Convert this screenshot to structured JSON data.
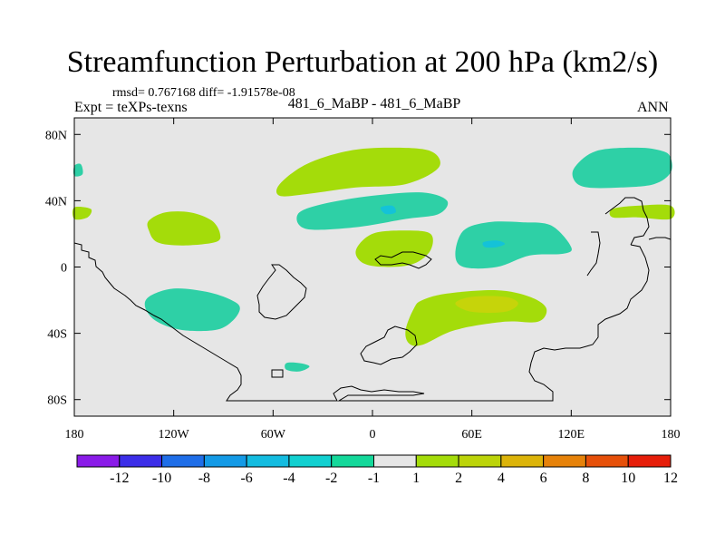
{
  "chart_data": {
    "type": "contour-map",
    "title": "Streamfunction Perturbation at 200 hPa (km2/s)",
    "stats_line": "rmsd= 0.767168 diff= -1.91578e-08",
    "experiment_label": "Expt = teXPs-texns",
    "case_label": "481_6_MaBP - 481_6_MaBP",
    "season": "ANN",
    "x_ticks": [
      "180",
      "120W",
      "60W",
      "0",
      "60E",
      "120E",
      "180"
    ],
    "x_tick_values": [
      -180,
      -120,
      -60,
      0,
      60,
      120,
      180
    ],
    "y_ticks": [
      "80N",
      "40N",
      "0",
      "40S",
      "80S"
    ],
    "y_tick_values": [
      80,
      40,
      0,
      -40,
      -80
    ],
    "xlim": [
      -180,
      180
    ],
    "ylim": [
      -90,
      90
    ],
    "colorbar": {
      "labels": [
        "-12",
        "-10",
        "-8",
        "-6",
        "-4",
        "-2",
        "-1",
        "1",
        "2",
        "4",
        "6",
        "8",
        "10",
        "12"
      ],
      "colors": [
        "#8a1be8",
        "#3c2ee8",
        "#1f6ee8",
        "#149ae6",
        "#14bce0",
        "#12d0d0",
        "#14d89a",
        "#e6e6e6",
        "#a4dc0a",
        "#bcd40a",
        "#dcb40a",
        "#e6820a",
        "#e6500a",
        "#e61e0a"
      ]
    },
    "regions": [
      {
        "name": "north-pacific-west-edge",
        "level": "-2..-1",
        "color": "#2ed0a6",
        "lonlat": [
          [
            -180,
            61
          ],
          [
            -176,
            62
          ],
          [
            -175,
            56
          ],
          [
            -180,
            55
          ]
        ]
      },
      {
        "name": "west-pacific-tropics-edge",
        "level": "1..2",
        "color": "#a4dc0a",
        "lonlat": [
          [
            -180,
            36
          ],
          [
            -170,
            35
          ],
          [
            -172,
            30
          ],
          [
            -180,
            29
          ]
        ]
      },
      {
        "name": "east-pacific-north",
        "level": "1..2",
        "color": "#a4dc0a",
        "lonlat": [
          [
            -135,
            28
          ],
          [
            -125,
            33
          ],
          [
            -110,
            33
          ],
          [
            -97,
            28
          ],
          [
            -92,
            20
          ],
          [
            -95,
            15
          ],
          [
            -115,
            13
          ],
          [
            -130,
            15
          ],
          [
            -135,
            22
          ]
        ]
      },
      {
        "name": "east-pacific-south",
        "level": "-2..-1",
        "color": "#2ed0a6",
        "lonlat": [
          [
            -135,
            -18
          ],
          [
            -120,
            -13
          ],
          [
            -100,
            -15
          ],
          [
            -85,
            -20
          ],
          [
            -80,
            -25
          ],
          [
            -85,
            -33
          ],
          [
            -95,
            -38
          ],
          [
            -115,
            -38
          ],
          [
            -130,
            -33
          ],
          [
            -137,
            -25
          ]
        ]
      },
      {
        "name": "south-atlantic-small",
        "level": "-2..-1",
        "color": "#2ed0a6",
        "lonlat": [
          [
            -52,
            -58
          ],
          [
            -44,
            -58
          ],
          [
            -38,
            -60
          ],
          [
            -44,
            -63
          ],
          [
            -52,
            -62
          ]
        ]
      },
      {
        "name": "north-atlantic",
        "level": "1..2",
        "color": "#a4dc0a",
        "lonlat": [
          [
            -56,
            50
          ],
          [
            -40,
            62
          ],
          [
            -15,
            70
          ],
          [
            10,
            72
          ],
          [
            35,
            70
          ],
          [
            40,
            60
          ],
          [
            20,
            50
          ],
          [
            -10,
            48
          ],
          [
            -40,
            44
          ],
          [
            -56,
            43
          ]
        ]
      },
      {
        "name": "north-atlantic-africa",
        "level": "-2..-1",
        "color": "#2ed0a6",
        "lonlat": [
          [
            -45,
            32
          ],
          [
            -30,
            38
          ],
          [
            0,
            43
          ],
          [
            30,
            45
          ],
          [
            45,
            40
          ],
          [
            40,
            32
          ],
          [
            20,
            29
          ],
          [
            -10,
            24
          ],
          [
            -40,
            23
          ]
        ]
      },
      {
        "name": "north-atlantic-africa-core",
        "level": "-4..-2",
        "color": "#14c2d8",
        "lonlat": [
          [
            5,
            36
          ],
          [
            12,
            37
          ],
          [
            14,
            33
          ],
          [
            8,
            32
          ]
        ]
      },
      {
        "name": "north-africa",
        "level": "1..2",
        "color": "#a4dc0a",
        "lonlat": [
          [
            -10,
            10
          ],
          [
            0,
            20
          ],
          [
            20,
            22
          ],
          [
            35,
            20
          ],
          [
            35,
            10
          ],
          [
            25,
            2
          ],
          [
            10,
            0
          ],
          [
            -5,
            2
          ]
        ]
      },
      {
        "name": "south-africa-indian",
        "level": "1..2",
        "color": "#a4dc0a",
        "lonlat": [
          [
            20,
            -38
          ],
          [
            25,
            -25
          ],
          [
            30,
            -20
          ],
          [
            45,
            -16
          ],
          [
            75,
            -14
          ],
          [
            95,
            -18
          ],
          [
            105,
            -25
          ],
          [
            100,
            -33
          ],
          [
            80,
            -33
          ],
          [
            50,
            -38
          ],
          [
            30,
            -47
          ],
          [
            22,
            -46
          ]
        ]
      },
      {
        "name": "south-indian-core",
        "level": "2..4",
        "color": "#c6d40a",
        "lonlat": [
          [
            50,
            -22
          ],
          [
            60,
            -18
          ],
          [
            80,
            -18
          ],
          [
            88,
            -22
          ],
          [
            80,
            -27
          ],
          [
            60,
            -27
          ]
        ]
      },
      {
        "name": "india",
        "level": "-2..-1",
        "color": "#2ed0a6",
        "lonlat": [
          [
            50,
            8
          ],
          [
            55,
            22
          ],
          [
            70,
            27
          ],
          [
            90,
            27
          ],
          [
            108,
            25
          ],
          [
            120,
            12
          ],
          [
            115,
            8
          ],
          [
            95,
            7
          ],
          [
            75,
            0
          ],
          [
            55,
            0
          ]
        ]
      },
      {
        "name": "india-core",
        "level": "-4..-2",
        "color": "#14c2d8",
        "lonlat": [
          [
            67,
            15
          ],
          [
            75,
            16
          ],
          [
            80,
            14
          ],
          [
            75,
            12
          ],
          [
            68,
            12
          ]
        ]
      },
      {
        "name": "north-pacific-east",
        "level": "-2..-1",
        "color": "#2ed0a6",
        "lonlat": [
          [
            122,
            60
          ],
          [
            135,
            70
          ],
          [
            160,
            72
          ],
          [
            175,
            70
          ],
          [
            180,
            66
          ],
          [
            180,
            57
          ],
          [
            170,
            50
          ],
          [
            150,
            48
          ],
          [
            130,
            48
          ],
          [
            122,
            52
          ]
        ]
      },
      {
        "name": "west-pacific-subtropics",
        "level": "1..2",
        "color": "#a4dc0a",
        "lonlat": [
          [
            145,
            35
          ],
          [
            160,
            37
          ],
          [
            180,
            37
          ],
          [
            180,
            29
          ],
          [
            160,
            30
          ],
          [
            145,
            30
          ]
        ]
      }
    ]
  }
}
